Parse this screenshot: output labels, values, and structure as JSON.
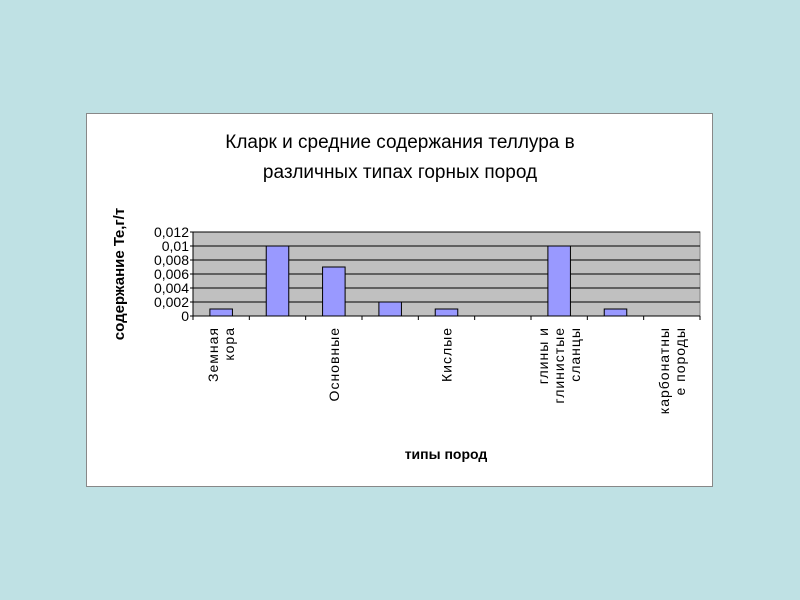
{
  "chart_data": {
    "type": "bar",
    "title": "Кларк и средние содержания теллура в\nразличных типах горных пород",
    "x_label": "типы пород",
    "y_label": "содержание Te,г/т",
    "categories": [
      "Земная\nкора",
      null,
      "Основные",
      null,
      "Кислые",
      null,
      "глины и\nглинистые\nсланцы",
      null,
      "карбонатны\nе породы"
    ],
    "values": [
      0.001,
      0.01,
      0.007,
      0.002,
      0.001,
      0,
      0.01,
      0.001,
      0
    ],
    "color": "#9999ff",
    "ylim": [
      0,
      0.012
    ],
    "yticks": [
      0,
      {
        "value": 0.002,
        "label": "0,002"
      },
      {
        "value": 0.004,
        "label": "0,004"
      },
      {
        "value": 0.006,
        "label": "0,006"
      },
      {
        "value": 0.008,
        "label": "0,008"
      },
      {
        "value": 0.01,
        "label": "0,01"
      },
      {
        "value": 0.012,
        "label": "0,012"
      }
    ],
    "grid": true
  }
}
